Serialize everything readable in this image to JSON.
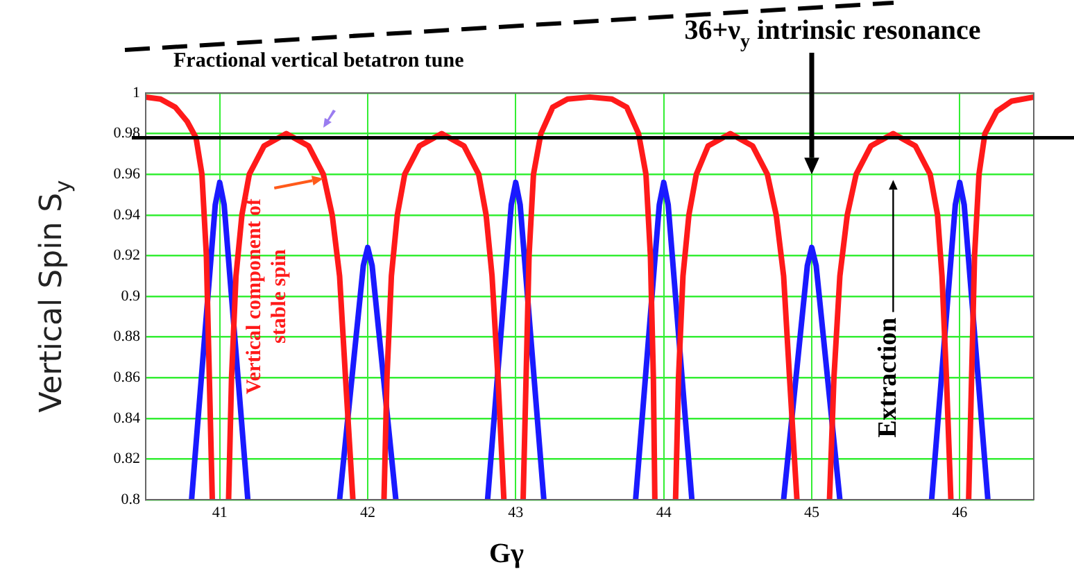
{
  "chart_data": {
    "type": "line",
    "title": "Fractional vertical betatron tune",
    "xlabel": "Gγ",
    "ylabel": "Vertical Spin S$_{y}$",
    "annotations": [
      "36+ν$_{y}$ intrinsic resonance",
      "Extraction"
    ],
    "series": [
      {
        "name": "Vertical component of stable spin",
        "color": "#ff1a1a",
        "x": [
          40.5,
          40.6,
          40.7,
          40.78,
          40.84,
          40.88,
          40.91,
          40.93,
          40.95,
          41.0,
          41.06,
          41.08,
          41.11,
          41.15,
          41.2,
          41.3,
          41.45,
          41.6,
          41.7,
          41.76,
          41.81,
          41.85,
          41.9,
          42.0,
          42.11,
          42.13,
          42.16,
          42.2,
          42.25,
          42.35,
          42.5,
          42.65,
          42.75,
          42.8,
          42.84,
          42.88,
          42.92,
          43.0,
          43.05,
          43.07,
          43.09,
          43.12,
          43.17,
          43.25,
          43.35,
          43.5,
          43.65,
          43.75,
          43.83,
          43.88,
          43.91,
          43.93,
          43.94,
          44.0,
          44.08,
          44.1,
          44.13,
          44.17,
          44.22,
          44.3,
          44.45,
          44.6,
          44.7,
          44.76,
          44.81,
          44.85,
          44.9,
          45.0,
          45.12,
          45.15,
          45.19,
          45.24,
          45.3,
          45.4,
          45.55,
          45.7,
          45.8,
          45.85,
          45.88,
          45.91,
          45.94,
          46.0,
          46.06,
          46.08,
          46.1,
          46.13,
          46.17,
          46.25,
          46.35,
          46.5
        ],
        "values": [
          0.998,
          0.997,
          0.993,
          0.986,
          0.978,
          0.96,
          0.92,
          0.86,
          0.8,
          null,
          0.8,
          0.86,
          0.91,
          0.94,
          0.96,
          0.974,
          0.98,
          0.974,
          0.96,
          0.94,
          0.91,
          0.86,
          0.8,
          null,
          0.8,
          0.86,
          0.91,
          0.94,
          0.96,
          0.974,
          0.98,
          0.974,
          0.96,
          0.94,
          0.91,
          0.86,
          0.8,
          null,
          0.8,
          0.86,
          0.92,
          0.96,
          0.98,
          0.993,
          0.997,
          0.998,
          0.997,
          0.993,
          0.98,
          0.96,
          0.92,
          0.86,
          0.8,
          null,
          0.8,
          0.86,
          0.91,
          0.94,
          0.96,
          0.974,
          0.98,
          0.974,
          0.96,
          0.94,
          0.91,
          0.86,
          0.8,
          null,
          0.8,
          0.86,
          0.91,
          0.94,
          0.96,
          0.974,
          0.98,
          0.974,
          0.96,
          0.94,
          0.91,
          0.86,
          0.8,
          null,
          0.8,
          0.86,
          0.92,
          0.96,
          0.98,
          0.991,
          0.996,
          0.998
        ]
      },
      {
        "color": "#1a1aff",
        "x": [
          40.81,
          40.97,
          41,
          41.03,
          41.19,
          41.5,
          41.81,
          41.97,
          42,
          42.03,
          42.19,
          42.5,
          42.81,
          42.97,
          43,
          43.03,
          43.19,
          43.5,
          43.81,
          43.97,
          44,
          44.03,
          44.19,
          44.5,
          44.81,
          44.97,
          45,
          45.03,
          45.19,
          45.5,
          45.81,
          45.97,
          46,
          46.03,
          46.19
        ],
        "values": [
          0.8,
          0.945,
          0.956,
          0.945,
          0.8,
          null,
          0.8,
          0.915,
          0.924,
          0.915,
          0.8,
          null,
          0.8,
          0.945,
          0.956,
          0.945,
          0.8,
          null,
          0.8,
          0.945,
          0.956,
          0.945,
          0.8,
          null,
          0.8,
          0.915,
          0.924,
          0.915,
          0.8,
          null,
          0.8,
          0.945,
          0.956,
          0.945,
          0.8
        ]
      }
    ],
    "xlim": [
      40.5,
      46.5
    ],
    "ylim": [
      0.8,
      1
    ],
    "xticks": [
      41,
      42,
      43,
      44,
      45,
      46
    ],
    "yticks": [
      0.8,
      0.82,
      0.84,
      0.86,
      0.88,
      0.9,
      0.92,
      0.94,
      0.96,
      0.98,
      1
    ],
    "grid": true,
    "marker": "none",
    "ref_lines": [
      {
        "axis": "y",
        "value": 0.978,
        "color": "#000000"
      }
    ]
  }
}
